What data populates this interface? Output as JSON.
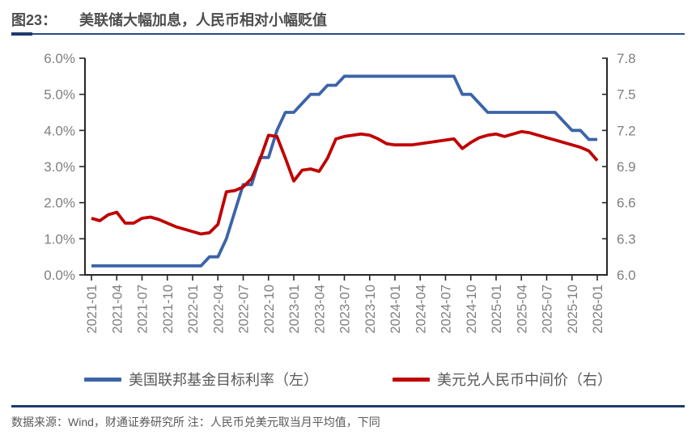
{
  "figure": {
    "label": "图23：",
    "title": "美联储大幅加息，人民币相对小幅贬值"
  },
  "source_note": "数据来源：Wind，财通证券研究所 注：人民币兑美元取当月平均值，下同",
  "colors": {
    "accent_navy": "#1d3a6a",
    "blue_series": "#3c64a8",
    "red_series": "#c00000",
    "axis_line": "#262626",
    "tick_label": "#7f7f7f",
    "text_gray": "#595959"
  },
  "chart_data": {
    "type": "line",
    "x_start": "2021-01",
    "x_freq_months": 1,
    "x_tick_labels": [
      "2021-01",
      "2021-04",
      "2021-07",
      "2021-10",
      "2022-01",
      "2022-04",
      "2022-07",
      "2022-10",
      "2023-01",
      "2023-04",
      "2023-07",
      "2023-10",
      "2024-01",
      "2024-04",
      "2024-07",
      "2024-10",
      "2025-01",
      "2025-04",
      "2025-07",
      "2025-10",
      "2026-01"
    ],
    "left_axis": {
      "min": 0,
      "max": 6,
      "step": 1,
      "format": "percent1"
    },
    "right_axis": {
      "min": 6.0,
      "max": 7.8,
      "step": 0.3,
      "format": "fixed1"
    },
    "legend_position": "bottom",
    "grid": false,
    "series": [
      {
        "name": "美国联邦基金目标利率（左）",
        "axis": "left",
        "color": "#3c64a8",
        "values": [
          0.25,
          0.25,
          0.25,
          0.25,
          0.25,
          0.25,
          0.25,
          0.25,
          0.25,
          0.25,
          0.25,
          0.25,
          0.25,
          0.25,
          0.5,
          0.5,
          1.0,
          1.75,
          2.5,
          2.5,
          3.25,
          3.25,
          4.0,
          4.5,
          4.5,
          4.75,
          5.0,
          5.0,
          5.25,
          5.25,
          5.5,
          5.5,
          5.5,
          5.5,
          5.5,
          5.5,
          5.5,
          5.5,
          5.5,
          5.5,
          5.5,
          5.5,
          5.5,
          5.5,
          5.0,
          5.0,
          4.75,
          4.5,
          4.5,
          4.5,
          4.5,
          4.5,
          4.5,
          4.5,
          4.5,
          4.5,
          4.25,
          4.0,
          4.0,
          3.75,
          3.75
        ]
      },
      {
        "name": "美元兑人民币中间价（右）",
        "axis": "right",
        "color": "#c00000",
        "values": [
          6.47,
          6.45,
          6.5,
          6.52,
          6.43,
          6.43,
          6.47,
          6.48,
          6.46,
          6.43,
          6.4,
          6.38,
          6.36,
          6.34,
          6.35,
          6.42,
          6.69,
          6.7,
          6.73,
          6.8,
          6.96,
          7.16,
          7.15,
          6.97,
          6.78,
          6.87,
          6.88,
          6.86,
          6.97,
          7.13,
          7.15,
          7.16,
          7.17,
          7.16,
          7.13,
          7.09,
          7.08,
          7.08,
          7.08,
          7.09,
          7.1,
          7.11,
          7.12,
          7.13,
          7.05,
          7.1,
          7.14,
          7.16,
          7.17,
          7.15,
          7.17,
          7.19,
          7.18,
          7.16,
          7.14,
          7.12,
          7.1,
          7.08,
          7.06,
          7.03,
          6.95
        ]
      }
    ]
  }
}
